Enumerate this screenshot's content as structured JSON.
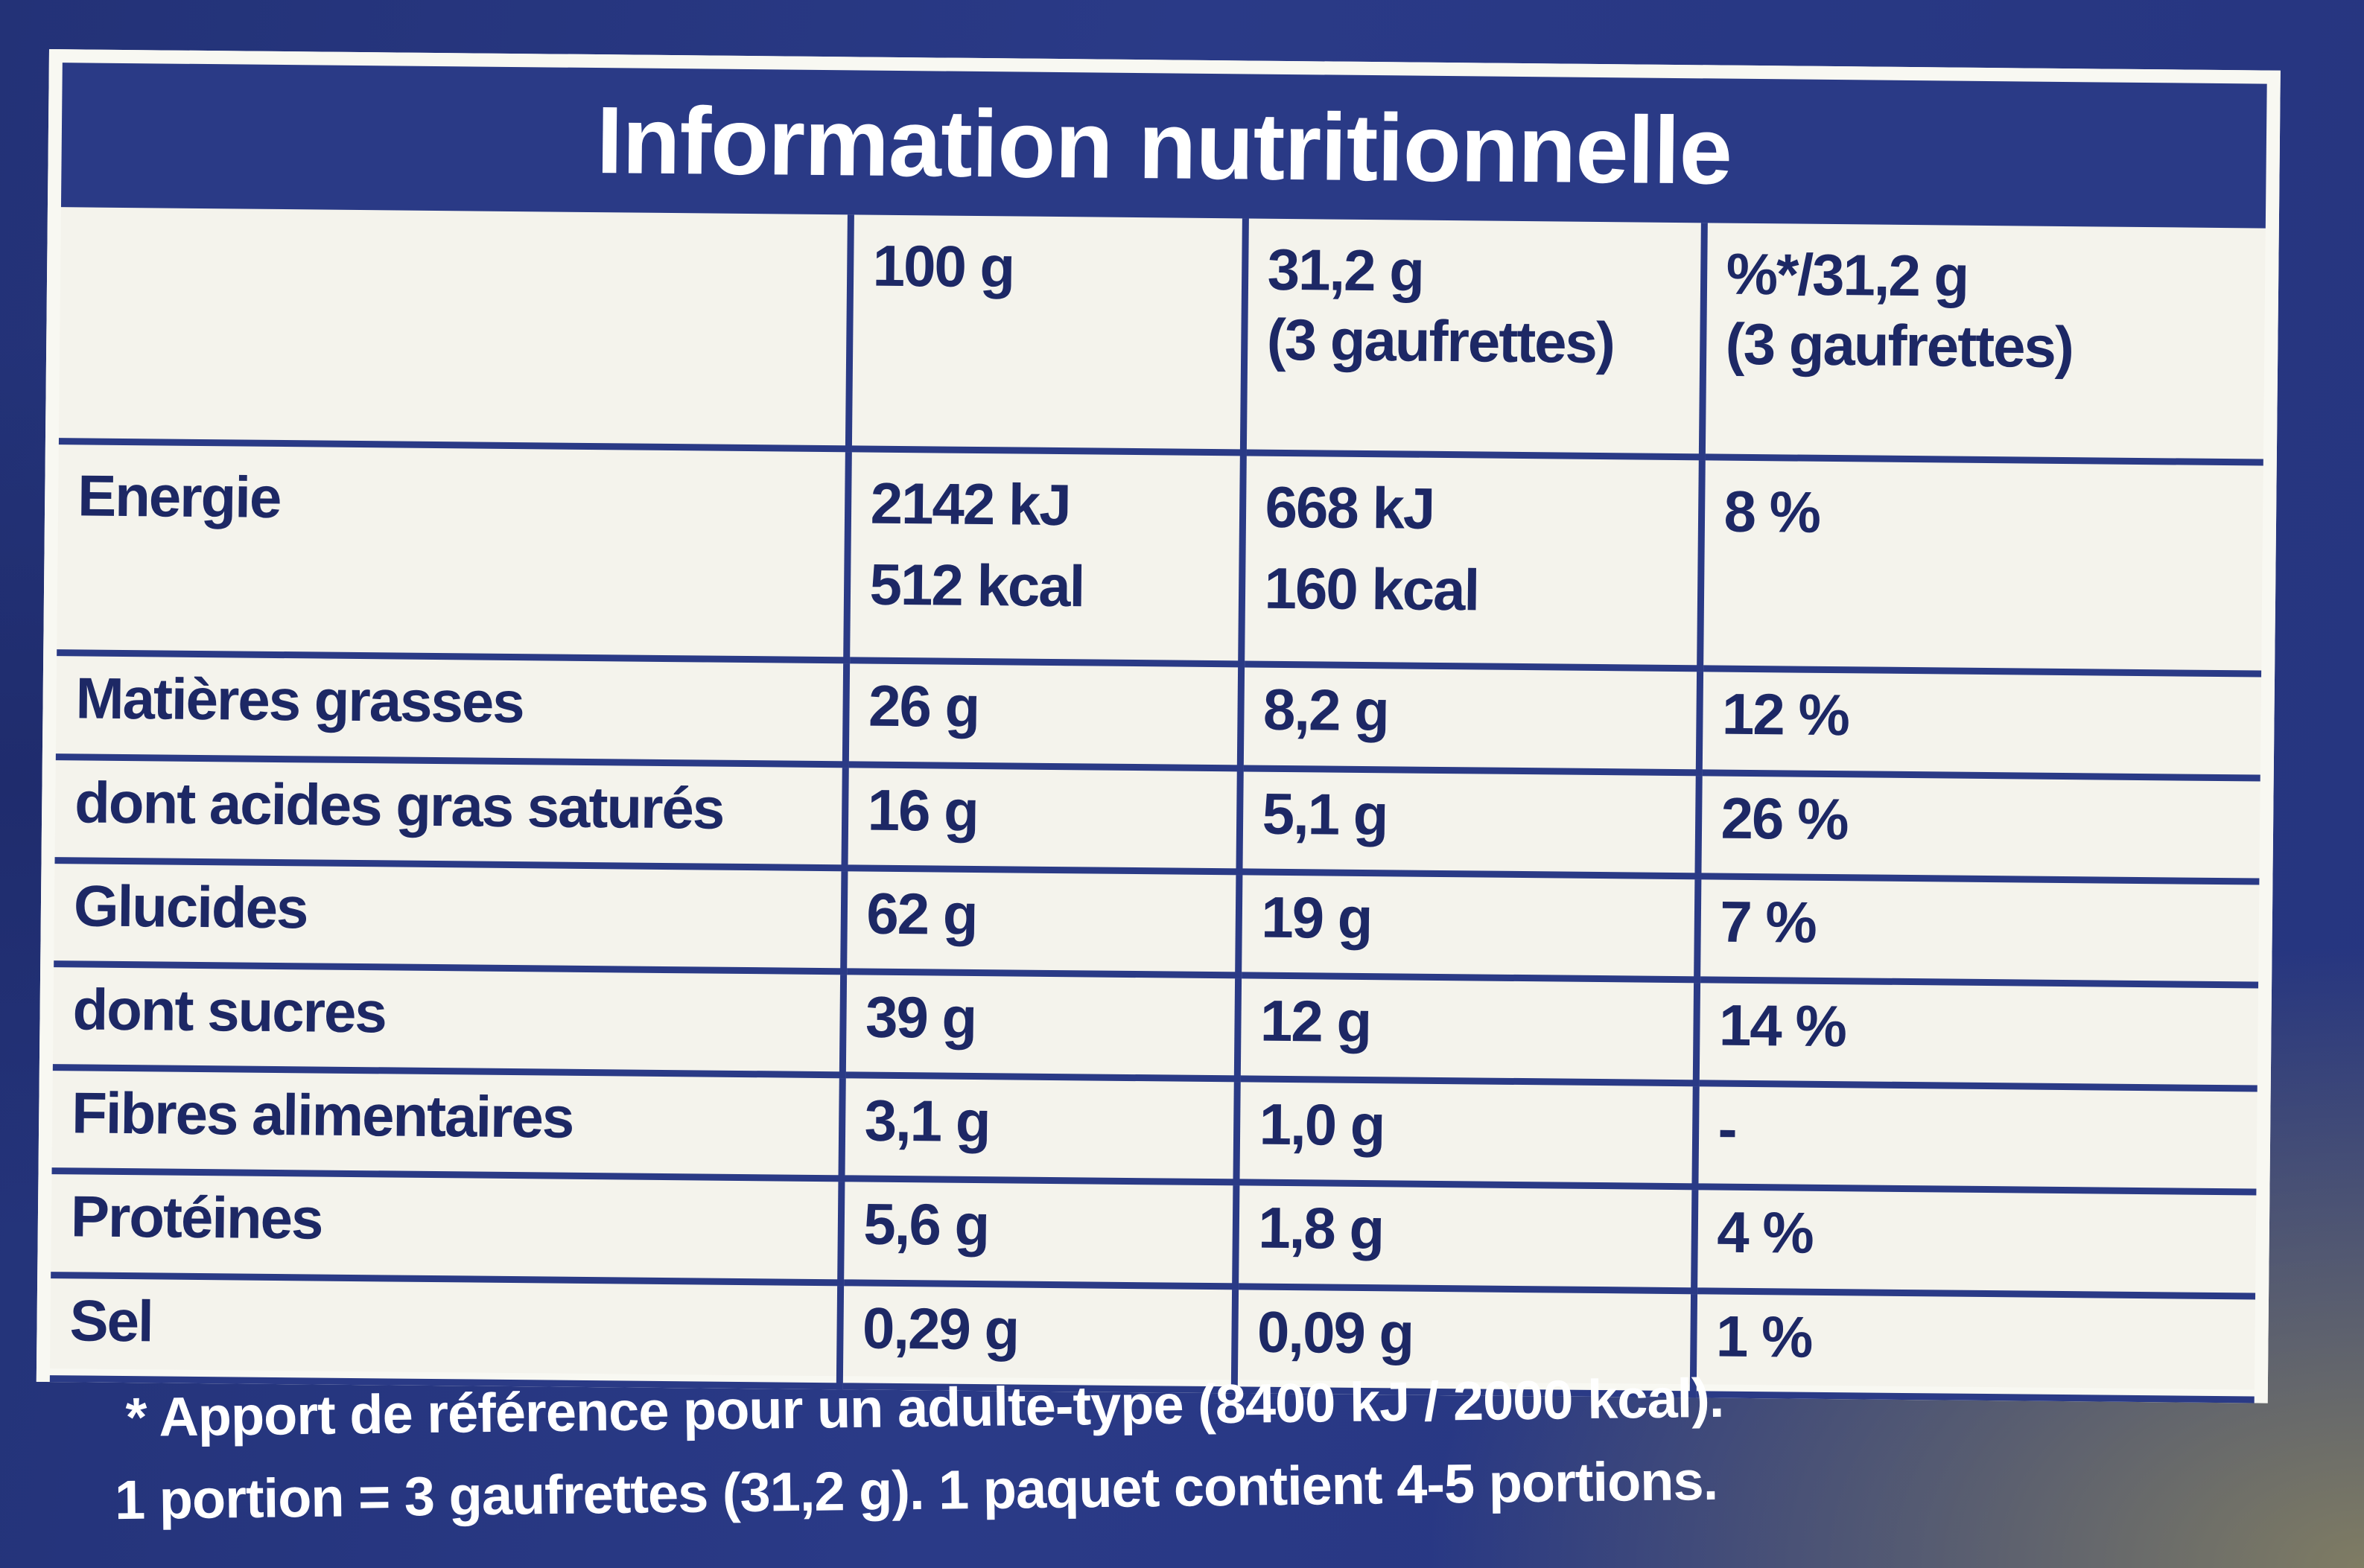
{
  "title": "Information nutritionnelle",
  "columns": {
    "blank": "",
    "per_100g": "100 g",
    "per_portion": "31,2 g",
    "per_portion_sub": "(3 gaufrettes)",
    "reference_intake": "%*/31,2 g",
    "reference_intake_sub": "(3 gaufrettes)"
  },
  "energy": {
    "label": "Energie",
    "per_100g_kj": "2142 kJ",
    "per_100g_kcal": "512 kcal",
    "per_portion_kj": "668 kJ",
    "per_portion_kcal": "160 kcal",
    "reference_intake": "8 %"
  },
  "rows": [
    {
      "label": "Matières grasses",
      "per_100g": "26 g",
      "per_portion": "8,2 g",
      "reference_intake": "12 %"
    },
    {
      "label": "dont acides gras saturés",
      "per_100g": "16 g",
      "per_portion": "5,1 g",
      "reference_intake": "26 %"
    },
    {
      "label": "Glucides",
      "per_100g": "62 g",
      "per_portion": "19 g",
      "reference_intake": "7 %"
    },
    {
      "label": "dont sucres",
      "per_100g": "39 g",
      "per_portion": "12 g",
      "reference_intake": "14 %"
    },
    {
      "label": "Fibres alimentaires",
      "per_100g": "3,1 g",
      "per_portion": "1,0 g",
      "reference_intake": "-"
    },
    {
      "label": "Protéines",
      "per_100g": "5,6 g",
      "per_portion": "1,8 g",
      "reference_intake": "4 %"
    },
    {
      "label": "Sel",
      "per_100g": "0,29 g",
      "per_portion": "0,09 g",
      "reference_intake": "1 %"
    }
  ],
  "footnote": {
    "reference": "* Apport de référence pour un adulte-type (8400 kJ / 2000 kcal).",
    "portion": "1 portion = 3 gaufrettes (31,2 g). 1 paquet contient 4-5 portions."
  },
  "colors": {
    "navy": "#2a3a86",
    "ink": "#1d2865",
    "paper": "#f4f3ec"
  }
}
